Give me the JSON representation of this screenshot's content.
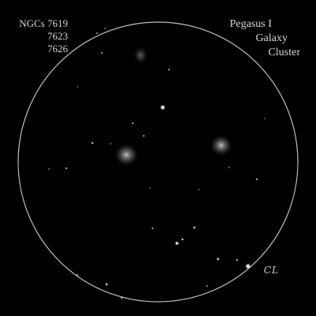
{
  "labels": {
    "ngc_lines": [
      "NGCs 7619",
      "7623",
      "7626"
    ],
    "title_lines": [
      "Pegasus I",
      "Galaxy",
      "Cluster"
    ],
    "signature": "CL"
  },
  "colors": {
    "background": "#000000",
    "field_circle": "#bdbdbd",
    "text": "#d6d6d6"
  },
  "objects": {
    "galaxies": [
      {
        "name": "galaxy-left"
      },
      {
        "name": "galaxy-right"
      },
      {
        "name": "galaxy-top"
      }
    ]
  }
}
